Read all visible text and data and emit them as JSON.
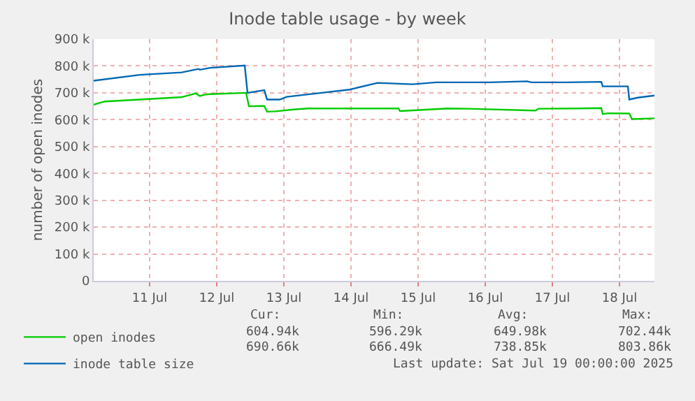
{
  "chart_data": {
    "type": "line",
    "title": "Inode table usage - by week",
    "ylabel": "number of open inodes",
    "x": [
      "2025-07-10T16:00",
      "2025-07-10T20:00",
      "2025-07-11T08:30",
      "2025-07-11T23:30",
      "2025-07-12T04:30",
      "2025-07-12T06:00",
      "2025-07-12T07:30",
      "2025-07-12T09:30",
      "2025-07-12T22:30",
      "2025-07-12T23:30",
      "2025-07-13T03:00",
      "2025-07-13T05:00",
      "2025-07-13T06:00",
      "2025-07-13T09:00",
      "2025-07-13T15:30",
      "2025-07-13T20:30",
      "2025-07-14T06:30",
      "2025-07-15T05:00",
      "2025-07-15T05:30",
      "2025-07-15T12:30",
      "2025-07-15T22:30",
      "2025-07-16T06:00",
      "2025-07-17T06:00",
      "2025-07-17T07:00",
      "2025-07-17T20:30",
      "2025-07-18T05:30",
      "2025-07-18T06:00",
      "2025-07-18T08:00",
      "2025-07-18T15:30",
      "2025-07-18T16:30",
      "2025-07-19T00:30"
    ],
    "series": [
      {
        "name": "open inodes",
        "color": "#00cc00",
        "values": [
          656000,
          668000,
          675000,
          684000,
          698000,
          688000,
          693000,
          695000,
          700000,
          650000,
          651000,
          651000,
          630000,
          631000,
          638000,
          642000,
          642000,
          642000,
          632000,
          636000,
          642000,
          641000,
          634000,
          641000,
          642000,
          643000,
          621000,
          624000,
          623000,
          602000,
          605000
        ]
      },
      {
        "name": "inode table size",
        "color": "#0066b3",
        "x": [
          "2025-07-10T16:00",
          "2025-07-11T08:30",
          "2025-07-11T23:30",
          "2025-07-12T05:30",
          "2025-07-12T06:00",
          "2025-07-12T09:30",
          "2025-07-12T22:00",
          "2025-07-12T23:00",
          "2025-07-13T05:00",
          "2025-07-13T06:00",
          "2025-07-13T10:30",
          "2025-07-13T13:00",
          "2025-07-14T01:30",
          "2025-07-14T11:30",
          "2025-07-14T21:30",
          "2025-07-15T10:00",
          "2025-07-15T18:30",
          "2025-07-16T13:30",
          "2025-07-17T03:00",
          "2025-07-17T04:30",
          "2025-07-17T17:00",
          "2025-07-18T05:30",
          "2025-07-18T06:00",
          "2025-07-18T15:00",
          "2025-07-18T15:30",
          "2025-07-18T18:30",
          "2025-07-19T00:30"
        ],
        "values": [
          745000,
          767000,
          776000,
          789000,
          786000,
          793000,
          802000,
          700000,
          710000,
          675000,
          675000,
          685000,
          700000,
          712000,
          737000,
          732000,
          739000,
          739000,
          743000,
          739000,
          739000,
          741000,
          724000,
          724000,
          675000,
          682000,
          690000
        ]
      }
    ],
    "xlim": [
      "2025-07-10T16:00",
      "2025-07-19T00:30"
    ],
    "xticks": [
      {
        "value": "2025-07-11T12:00",
        "label": "11 Jul"
      },
      {
        "value": "2025-07-12T12:00",
        "label": "12 Jul"
      },
      {
        "value": "2025-07-13T12:00",
        "label": "13 Jul"
      },
      {
        "value": "2025-07-14T12:00",
        "label": "14 Jul"
      },
      {
        "value": "2025-07-15T12:00",
        "label": "15 Jul"
      },
      {
        "value": "2025-07-16T12:00",
        "label": "16 Jul"
      },
      {
        "value": "2025-07-17T12:00",
        "label": "17 Jul"
      },
      {
        "value": "2025-07-18T12:00",
        "label": "18 Jul"
      }
    ],
    "ylim": [
      0,
      900000
    ],
    "yticks": [
      0,
      {
        "value": 100000,
        "label": "100 k"
      },
      {
        "value": 200000,
        "label": "200 k"
      },
      {
        "value": 300000,
        "label": "300 k"
      },
      {
        "value": 400000,
        "label": "400 k"
      },
      {
        "value": 500000,
        "label": "500 k"
      },
      {
        "value": 600000,
        "label": "600 k"
      },
      {
        "value": 700000,
        "label": "700 k"
      },
      {
        "value": 800000,
        "label": "800 k"
      },
      {
        "value": 900000,
        "label": "900 k"
      }
    ],
    "grid": true,
    "legend": "bottom left",
    "marker": "none",
    "line_style": "solid",
    "annotations": [
      "Cur:",
      "Min:",
      "Avg:",
      "Max:",
      "604.94k",
      "596.29k",
      "649.98k",
      "702.44k",
      "690.66k",
      "666.49k",
      "738.85k",
      "803.86k",
      "Last update: Sat Jul 19 00:00:00 2025"
    ]
  }
}
